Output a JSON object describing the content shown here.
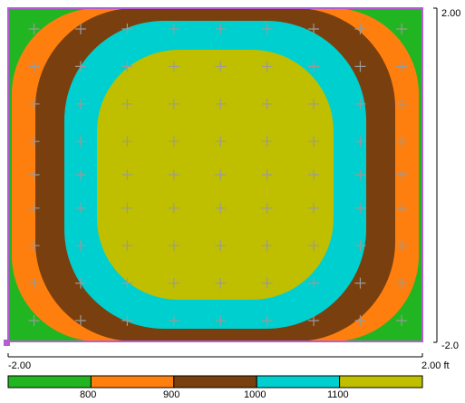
{
  "chart_data": {
    "type": "heatmap",
    "x_range_label_min": "-2.00",
    "x_range_label_max": "2.00 ft",
    "y_range_label_max": "2.00",
    "y_range_label_min": "-2.0",
    "xlim": [
      -2.0,
      2.0
    ],
    "ylim": [
      -2.0,
      2.0
    ],
    "unit": "ft",
    "grid_markers": "plus",
    "grid_x": [
      -1.75,
      -1.3,
      -0.85,
      -0.4,
      0.05,
      0.5,
      0.95,
      1.4,
      1.8
    ],
    "grid_y": [
      1.75,
      1.3,
      0.85,
      0.4,
      0.0,
      -0.4,
      -0.85,
      -1.3,
      -1.75
    ],
    "contour_levels": [
      800,
      900,
      1000,
      1100
    ],
    "level_labels": [
      "800",
      "900",
      "1000",
      "1100"
    ],
    "bands": [
      {
        "below": 800,
        "color": "#22b522"
      },
      {
        "from": 800,
        "to": 900,
        "color": "#ff7f0e"
      },
      {
        "from": 900,
        "to": 1000,
        "color": "#7a3f0e"
      },
      {
        "from": 1000,
        "to": 1100,
        "color": "#00cfd0"
      },
      {
        "above": 1100,
        "color": "#bfbf00"
      }
    ],
    "frame_color": "#b45ed6"
  }
}
